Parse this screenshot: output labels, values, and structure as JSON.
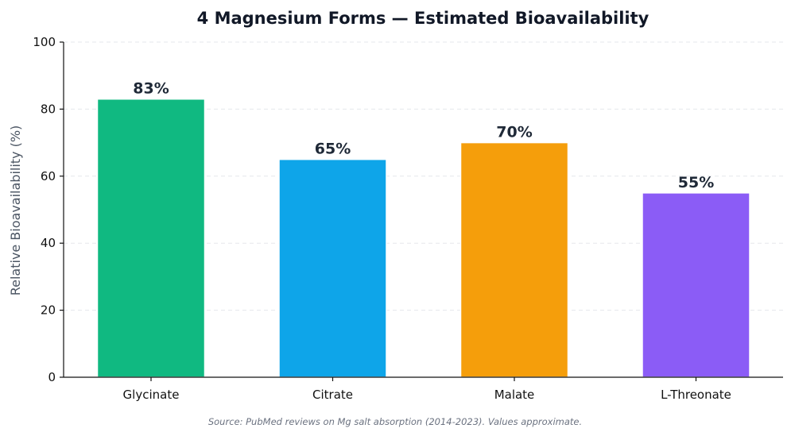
{
  "chart_data": {
    "type": "bar",
    "title": "4 Magnesium Forms — Estimated Bioavailability",
    "xlabel": "",
    "ylabel": "Relative Bioavailability (%)",
    "categories": [
      "Glycinate",
      "Citrate",
      "Malate",
      "L-Threonate"
    ],
    "values": [
      83,
      65,
      70,
      55
    ],
    "value_labels": [
      "83%",
      "65%",
      "70%",
      "55%"
    ],
    "colors": [
      "#10b981",
      "#0ea5e9",
      "#f59e0b",
      "#8b5cf6"
    ],
    "ylim": [
      0,
      100
    ],
    "yticks": [
      0,
      20,
      40,
      60,
      80,
      100
    ],
    "grid": true,
    "legend": "none",
    "source": "Source: PubMed reviews on Mg salt absorption (2014-2023). Values approximate."
  }
}
